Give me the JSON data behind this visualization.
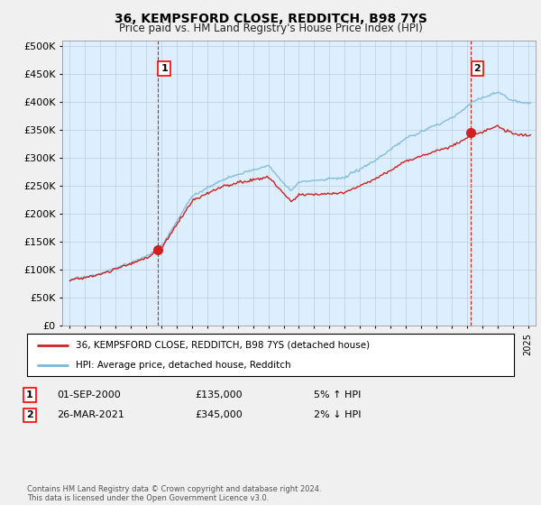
{
  "title": "36, KEMPSFORD CLOSE, REDDITCH, B98 7YS",
  "subtitle": "Price paid vs. HM Land Registry's House Price Index (HPI)",
  "legend_line1": "36, KEMPSFORD CLOSE, REDDITCH, B98 7YS (detached house)",
  "legend_line2": "HPI: Average price, detached house, Redditch",
  "annotation1_date": "01-SEP-2000",
  "annotation1_price": "£135,000",
  "annotation1_hpi": "5% ↑ HPI",
  "annotation2_date": "26-MAR-2021",
  "annotation2_price": "£345,000",
  "annotation2_hpi": "2% ↓ HPI",
  "footer": "Contains HM Land Registry data © Crown copyright and database right 2024.\nThis data is licensed under the Open Government Licence v3.0.",
  "sale1_year": 2000.75,
  "sale1_value": 135000,
  "sale2_year": 2021.25,
  "sale2_value": 345000,
  "hpi_color": "#7ab8d9",
  "price_color": "#cc2222",
  "background_color": "#f0f0f0",
  "plot_bg_color": "#ddeeff",
  "ylim": [
    0,
    510000
  ],
  "xlim_start": 1994.5,
  "xlim_end": 2025.5
}
